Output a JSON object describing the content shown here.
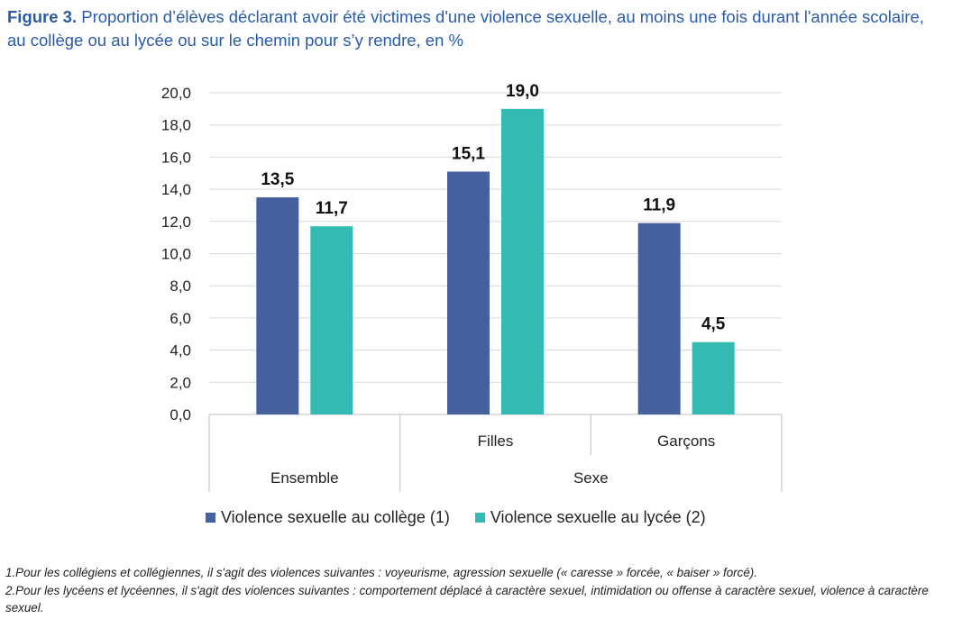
{
  "title": {
    "figure_label": "Figure 3.",
    "text": " Proportion d’élèves déclarant avoir été victimes d'une violence sexuelle, au moins une fois durant l'année scolaire, au collège ou au lycée ou sur le chemin pour s’y rendre, en %"
  },
  "colors": {
    "college": "#46609e",
    "lycee": "#33bbb3",
    "title": "#2a5ba8",
    "grid": "#d9d9d9"
  },
  "chart_data": {
    "type": "bar",
    "categories": [
      "",
      "Filles",
      "Garçons"
    ],
    "groups": [
      {
        "label": "Ensemble",
        "span": 1
      },
      {
        "label": "Sexe",
        "span": 2
      }
    ],
    "series": [
      {
        "name": "Violence sexuelle au collège (1)",
        "values": [
          13.5,
          15.1,
          11.9
        ],
        "labels": [
          "13,5",
          "15,1",
          "11,9"
        ]
      },
      {
        "name": "Violence sexuelle au lycée (2)",
        "values": [
          11.7,
          19.0,
          4.5
        ],
        "labels": [
          "11,7",
          "19,0",
          "4,5"
        ]
      }
    ],
    "ylim": [
      0,
      20
    ],
    "yticks": [
      "0,0",
      "2,0",
      "4,0",
      "6,0",
      "8,0",
      "10,0",
      "12,0",
      "14,0",
      "16,0",
      "18,0",
      "20,0"
    ],
    "grid": true,
    "legend_position": "bottom"
  },
  "legend": [
    {
      "label": "Violence sexuelle au collège (1)"
    },
    {
      "label": "Violence sexuelle au lycée (2)"
    }
  ],
  "notes": [
    "1.Pour les collégiens et collégiennes, il s'agit des violences suivantes : voyeurisme, agression sexuelle (« caresse » forcée, « baiser » forcé).",
    "2.Pour les lycéens et lycéennes, il s'agit des violences suivantes : comportement déplacé à caractère sexuel, intimidation ou offense à caractère sexuel, violence à caractère sexuel."
  ]
}
